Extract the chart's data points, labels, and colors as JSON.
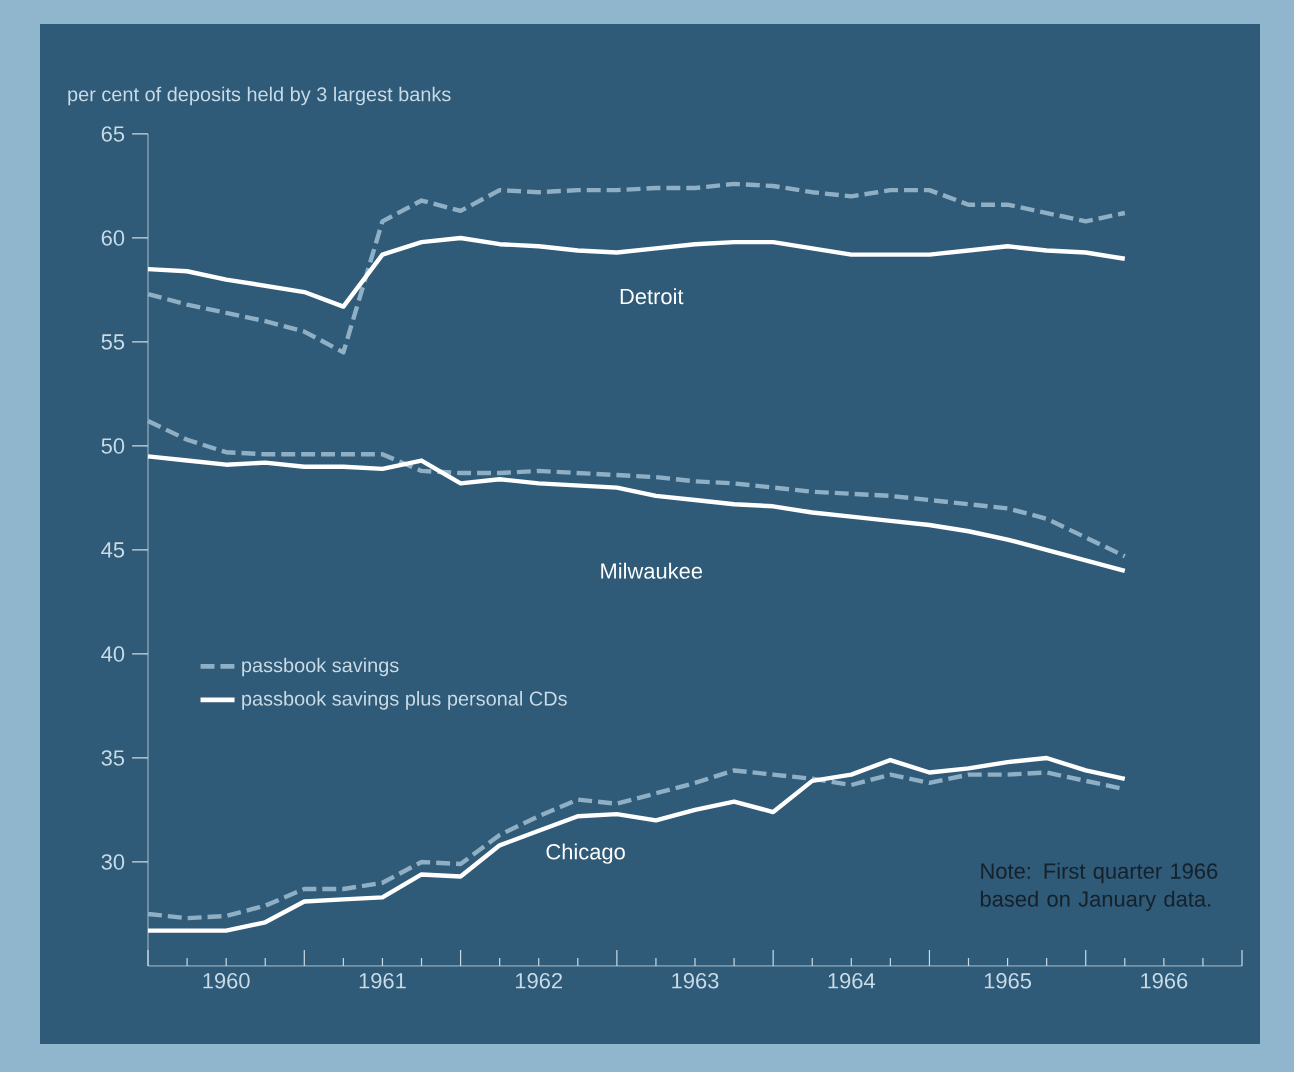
{
  "chart_data": {
    "type": "line",
    "ylabel": "per cent of deposits held by 3 largest banks",
    "x": [
      1960.0,
      1960.25,
      1960.5,
      1960.75,
      1961.0,
      1961.25,
      1961.5,
      1961.75,
      1962.0,
      1962.25,
      1962.5,
      1962.75,
      1963.0,
      1963.25,
      1963.5,
      1963.75,
      1964.0,
      1964.25,
      1964.5,
      1964.75,
      1965.0,
      1965.25,
      1965.5,
      1965.75,
      1966.0,
      1966.25
    ],
    "series": [
      {
        "name": "passbook savings",
        "color": "#8fb0c4",
        "line_style": "dashed",
        "values": [
          57.3,
          56.8,
          56.4,
          56.0,
          55.5,
          54.5,
          60.8,
          61.8,
          61.3,
          62.3,
          62.2,
          62.3,
          62.3,
          62.4,
          62.4,
          62.6,
          62.5,
          62.2,
          62.0,
          62.3,
          62.3,
          61.6,
          61.6,
          61.2,
          60.8,
          61.2
        ]
      },
      {
        "name": "passbook savings plus personal CDs",
        "color": "#ffffff",
        "line_style": "solid",
        "values": [
          58.5,
          58.4,
          58.0,
          57.7,
          57.4,
          56.7,
          59.2,
          59.8,
          60.0,
          59.7,
          59.6,
          59.4,
          59.3,
          59.5,
          59.7,
          59.8,
          59.8,
          59.5,
          59.2,
          59.2,
          59.2,
          59.4,
          59.6,
          59.4,
          59.3,
          59.0
        ]
      },
      {
        "color": "#8fb0c4",
        "line_style": "dashed",
        "values": [
          51.2,
          50.3,
          49.7,
          49.6,
          49.6,
          49.6,
          49.6,
          48.8,
          48.7,
          48.7,
          48.8,
          48.7,
          48.6,
          48.5,
          48.3,
          48.2,
          48.0,
          47.8,
          47.7,
          47.6,
          47.4,
          47.2,
          47.0,
          46.5,
          45.6,
          44.7
        ]
      },
      {
        "color": "#ffffff",
        "line_style": "solid",
        "values": [
          49.5,
          49.3,
          49.1,
          49.2,
          49.0,
          49.0,
          48.9,
          49.3,
          48.2,
          48.4,
          48.2,
          48.1,
          48.0,
          47.6,
          47.4,
          47.2,
          47.1,
          46.8,
          46.6,
          46.4,
          46.2,
          45.9,
          45.5,
          45.0,
          44.5,
          44.0
        ]
      },
      {
        "color": "#8fb0c4",
        "line_style": "dashed",
        "values": [
          27.5,
          27.3,
          27.4,
          27.9,
          28.7,
          28.7,
          29.0,
          30.0,
          29.9,
          31.3,
          32.2,
          33.0,
          32.8,
          33.3,
          33.8,
          34.4,
          34.2,
          34.0,
          33.7,
          34.2,
          33.8,
          34.2,
          34.2,
          34.3,
          33.9,
          33.5
        ]
      },
      {
        "color": "#ffffff",
        "line_style": "solid",
        "values": [
          26.7,
          26.7,
          26.7,
          27.1,
          28.1,
          28.2,
          28.3,
          29.4,
          29.3,
          30.8,
          31.5,
          32.2,
          32.3,
          32.0,
          32.5,
          32.9,
          32.4,
          33.9,
          34.2,
          34.9,
          34.3,
          34.5,
          34.8,
          35.0,
          34.4,
          34.0
        ]
      }
    ],
    "xlim": [
      1960,
      1967
    ],
    "xticks": [
      {
        "value": 1960,
        "label": null
      },
      {
        "value": 1961,
        "label": null
      },
      {
        "value": 1962,
        "label": null
      },
      {
        "value": 1963,
        "label": null
      },
      {
        "value": 1964,
        "label": null
      },
      {
        "value": 1965,
        "label": null
      },
      {
        "value": 1966,
        "label": null
      },
      {
        "value": 1967,
        "label": null
      },
      {
        "value": 1960.5,
        "label": "1960"
      },
      {
        "value": 1961.5,
        "label": "1961"
      },
      {
        "value": 1962.5,
        "label": "1962"
      },
      {
        "value": 1963.5,
        "label": "1963"
      },
      {
        "value": 1964.5,
        "label": "1964"
      },
      {
        "value": 1965.5,
        "label": "1965"
      },
      {
        "value": 1966.5,
        "label": "1966"
      }
    ],
    "ylim": [
      25,
      65
    ],
    "yticks": [
      30,
      35,
      40,
      45,
      50,
      55,
      60,
      65
    ],
    "legend": "left",
    "annotations": [
      "Detroit",
      "Milwaukee",
      "Chicago",
      "Note: First quarter 1966 based on January data."
    ]
  }
}
